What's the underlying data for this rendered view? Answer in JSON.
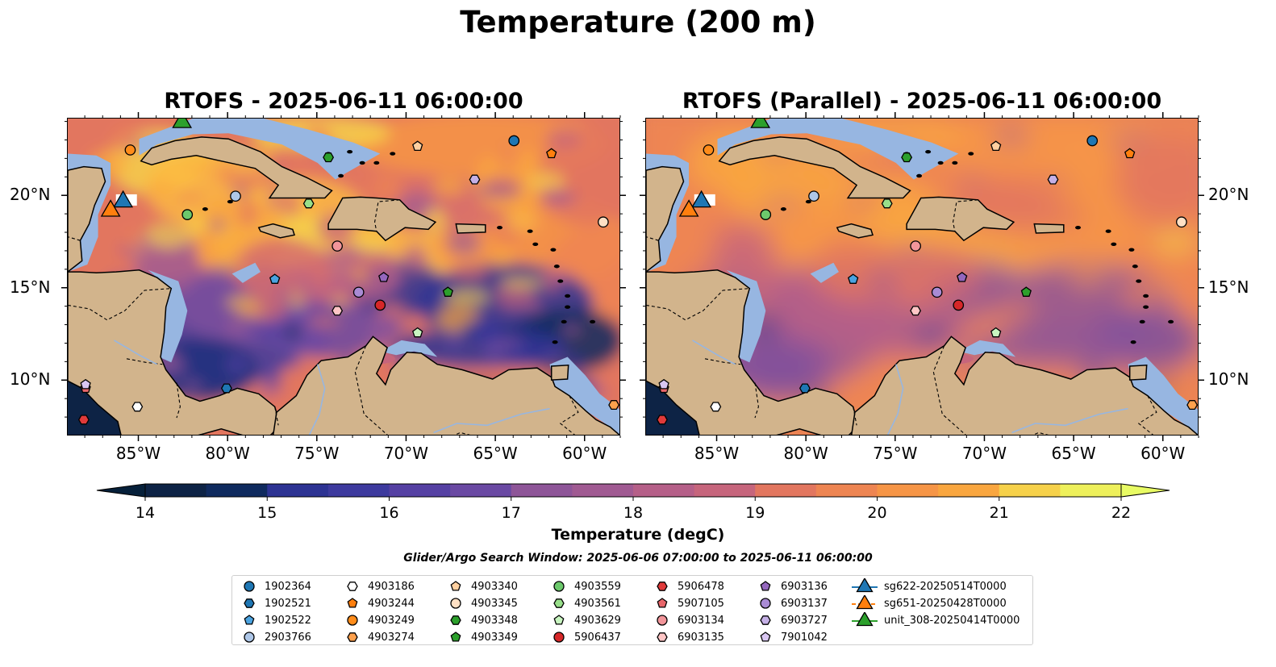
{
  "suptitle": "Temperature (200 m)",
  "panels": [
    {
      "title": "RTOFS - 2025-06-11 06:00:00"
    },
    {
      "title": "RTOFS (Parallel) - 2025-06-11 06:00:00"
    }
  ],
  "map_extent": {
    "lon": [
      -89,
      -58
    ],
    "lat": [
      7,
      24.2
    ]
  },
  "lon_ticks": [
    "85°W",
    "80°W",
    "75°W",
    "70°W",
    "65°W",
    "60°W"
  ],
  "lat_ticks": [
    "20°N",
    "15°N",
    "10°N"
  ],
  "colorbar": {
    "label": "Temperature (degC)",
    "range": [
      14,
      22
    ],
    "tick_labels": [
      "14",
      "15",
      "16",
      "17",
      "18",
      "19",
      "20",
      "21",
      "22"
    ],
    "colors": [
      "#0d2345",
      "#0f2a5e",
      "#1f2f7d",
      "#2d3393",
      "#3d3a9e",
      "#5540a3",
      "#6a49a3",
      "#7c4f9e",
      "#8e5598",
      "#a05a92",
      "#b55f88",
      "#c6657c",
      "#d66d6d",
      "#e2765f",
      "#ee8552",
      "#f69546",
      "#f9a63f",
      "#fbba42",
      "#f6d14a",
      "#eef05b"
    ]
  },
  "window_text": "Glider/Argo Search Window: 2025-06-06 07:00:00 to 2025-06-11 06:00:00",
  "land_color": "#d2b48c",
  "shallow_color": "#97b6e1",
  "legend": [
    {
      "label": "1902364",
      "marker": "circle",
      "color": "#1f77b4"
    },
    {
      "label": "1902521",
      "marker": "hexagon",
      "color": "#1f77b4"
    },
    {
      "label": "1902522",
      "marker": "pentagon",
      "color": "#4ba3e0"
    },
    {
      "label": "2903766",
      "marker": "circle",
      "color": "#aec7e8"
    },
    {
      "label": "4903186",
      "marker": "hexagon",
      "color": "#ffffff"
    },
    {
      "label": "4903244",
      "marker": "pentagon",
      "color": "#ff7f0e"
    },
    {
      "label": "4903249",
      "marker": "circle",
      "color": "#ff8c1a"
    },
    {
      "label": "4903274",
      "marker": "hexagon",
      "color": "#ffa14d"
    },
    {
      "label": "4903340",
      "marker": "pentagon",
      "color": "#ffd0a0"
    },
    {
      "label": "4903345",
      "marker": "circle",
      "color": "#ffe0c4"
    },
    {
      "label": "4903348",
      "marker": "hexagon",
      "color": "#2ca02c"
    },
    {
      "label": "4903349",
      "marker": "pentagon",
      "color": "#2ca02c"
    },
    {
      "label": "4903559",
      "marker": "circle",
      "color": "#6cc96c"
    },
    {
      "label": "4903561",
      "marker": "hexagon",
      "color": "#98df8a"
    },
    {
      "label": "4903629",
      "marker": "pentagon",
      "color": "#c8f5c0"
    },
    {
      "label": "5906437",
      "marker": "circle",
      "color": "#d62728"
    },
    {
      "label": "5906478",
      "marker": "hexagon",
      "color": "#e03a3a"
    },
    {
      "label": "5907105",
      "marker": "pentagon",
      "color": "#e8666a"
    },
    {
      "label": "6903134",
      "marker": "circle",
      "color": "#f2959a"
    },
    {
      "label": "6903135",
      "marker": "hexagon",
      "color": "#ffc6c6"
    },
    {
      "label": "6903136",
      "marker": "pentagon",
      "color": "#9467bd"
    },
    {
      "label": "6903137",
      "marker": "circle",
      "color": "#a98bd4"
    },
    {
      "label": "6903727",
      "marker": "hexagon",
      "color": "#c5b0e6"
    },
    {
      "label": "7901042",
      "marker": "pentagon",
      "color": "#d9c6f2"
    },
    {
      "label": "sg622-20250514T0000",
      "marker": "triangle",
      "color": "#1f77b4"
    },
    {
      "label": "sg651-20250428T0000",
      "marker": "triangle",
      "color": "#ff7f0e"
    },
    {
      "label": "unit_308-20250414T0000",
      "marker": "triangle",
      "color": "#2ca02c"
    }
  ],
  "floats": [
    {
      "id": "1902364",
      "lon": -64.0,
      "lat": 23.0
    },
    {
      "id": "1902521",
      "lon": -80.1,
      "lat": 9.6
    },
    {
      "id": "1902522",
      "lon": -77.4,
      "lat": 15.5
    },
    {
      "id": "2903766",
      "lon": -79.6,
      "lat": 20.0
    },
    {
      "id": "4903186",
      "lon": -85.1,
      "lat": 8.6
    },
    {
      "id": "4903244",
      "lon": -61.9,
      "lat": 22.3
    },
    {
      "id": "4903249",
      "lon": -85.5,
      "lat": 22.5
    },
    {
      "id": "4903274",
      "lon": -58.4,
      "lat": 8.7
    },
    {
      "id": "4903340",
      "lon": -69.4,
      "lat": 22.7
    },
    {
      "id": "4903345",
      "lon": -59.0,
      "lat": 18.6
    },
    {
      "id": "4903348",
      "lon": -74.4,
      "lat": 22.1
    },
    {
      "id": "4903349",
      "lon": -67.7,
      "lat": 14.8
    },
    {
      "id": "4903559",
      "lon": -82.3,
      "lat": 19.0
    },
    {
      "id": "4903561",
      "lon": -75.5,
      "lat": 19.6
    },
    {
      "id": "4903629",
      "lon": -69.4,
      "lat": 12.6
    },
    {
      "id": "5906437",
      "lon": -71.5,
      "lat": 14.1
    },
    {
      "id": "5906478",
      "lon": -88.1,
      "lat": 7.9
    },
    {
      "id": "5907105",
      "lon": -88.0,
      "lat": 9.6
    },
    {
      "id": "6903134",
      "lon": -73.9,
      "lat": 17.3
    },
    {
      "id": "6903135",
      "lon": -73.9,
      "lat": 13.8
    },
    {
      "id": "6903136",
      "lon": -71.3,
      "lat": 15.6
    },
    {
      "id": "6903137",
      "lon": -72.7,
      "lat": 14.8
    },
    {
      "id": "6903727",
      "lon": -66.2,
      "lat": 20.9
    },
    {
      "id": "7901042",
      "lon": -88.0,
      "lat": 9.8
    }
  ],
  "gliders": [
    {
      "id": "sg622-20250514T0000",
      "lon": -85.9,
      "lat": 19.7
    },
    {
      "id": "sg651-20250428T0000",
      "lon": -86.6,
      "lat": 19.2
    },
    {
      "id": "unit_308-20250414T0000",
      "lon": -82.6,
      "lat": 24.0
    }
  ]
}
